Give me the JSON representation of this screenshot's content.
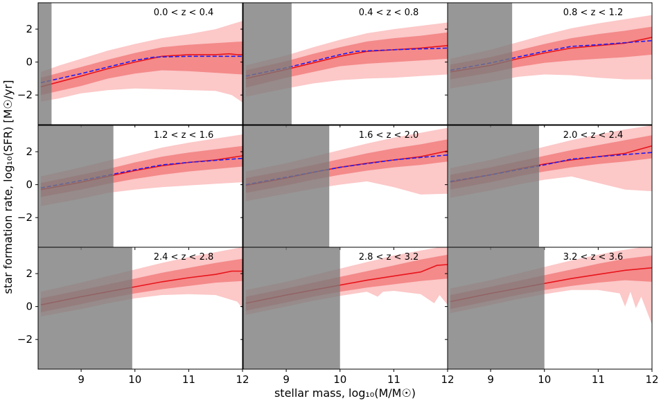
{
  "chart_data": {
    "type": "line",
    "layout": "3x3 grid of panels sharing axes",
    "xlabel": "stellar mass, log₁₀(M/M☉)",
    "ylabel": "star formation rate, log₁₀(SFR) [M☉/yr]",
    "xlim": [
      8.2,
      12.0
    ],
    "ylim": [
      -3.8,
      3.6
    ],
    "x_ticks": [
      "9",
      "10",
      "11",
      "12"
    ],
    "y_ticks": [
      "2",
      "0",
      "−2"
    ],
    "colors": {
      "median": "#e8141b",
      "inner_band": "#f48a8a",
      "outer_band": "#fcc8c8",
      "reference": "#1c1cf2",
      "mask": "#7a7a7a"
    },
    "panels": [
      {
        "label": "0.0 < z < 0.4",
        "mask_max": 8.45,
        "median": {
          "x": [
            8.25,
            9.0,
            9.5,
            10.0,
            10.5,
            11.0,
            11.5,
            11.75,
            11.9,
            12.0
          ],
          "y": [
            -1.5,
            -0.85,
            -0.4,
            0.0,
            0.35,
            0.45,
            0.45,
            0.5,
            0.45,
            0.45
          ]
        },
        "inner_band": {
          "x": [
            8.25,
            9.0,
            9.5,
            10.0,
            10.5,
            11.0,
            11.5,
            12.0
          ],
          "upper": [
            -0.95,
            -0.3,
            0.15,
            0.55,
            0.9,
            1.05,
            1.15,
            1.25
          ],
          "lower": [
            -2.0,
            -1.45,
            -1.0,
            -0.7,
            -0.5,
            -0.55,
            -0.65,
            -0.75
          ]
        },
        "outer_band": {
          "x": [
            8.25,
            8.6,
            9.0,
            9.5,
            10.0,
            10.5,
            11.0,
            11.5,
            11.8,
            12.0
          ],
          "upper": [
            -0.6,
            -0.2,
            0.2,
            0.7,
            1.1,
            1.45,
            1.7,
            2.0,
            2.3,
            2.5
          ],
          "lower": [
            -2.4,
            -2.2,
            -1.9,
            -1.7,
            -1.6,
            -1.65,
            -1.7,
            -1.75,
            -2.0,
            -2.45
          ]
        },
        "reference": {
          "x": [
            8.25,
            9.0,
            10.0,
            10.35,
            11.0,
            12.0
          ],
          "y": [
            -1.25,
            -0.7,
            0.1,
            0.3,
            0.35,
            0.35
          ]
        }
      },
      {
        "label": "0.4 < z < 0.8",
        "mask_max": 9.1,
        "median": {
          "x": [
            8.25,
            9.0,
            9.5,
            10.0,
            10.5,
            11.0,
            11.5,
            12.0
          ],
          "y": [
            -1.0,
            -0.45,
            -0.05,
            0.35,
            0.65,
            0.75,
            0.85,
            1.0
          ]
        },
        "inner_band": {
          "x": [
            8.25,
            9.0,
            9.5,
            10.0,
            10.5,
            11.0,
            11.5,
            12.0
          ],
          "upper": [
            -0.5,
            0.05,
            0.5,
            0.9,
            1.25,
            1.45,
            1.6,
            1.8
          ]
        },
        "inner_band_lower": [
          -1.55,
          -0.95,
          -0.6,
          -0.25,
          -0.1,
          0.0,
          0.1,
          0.2
        ],
        "outer_band": {
          "x": [
            8.25,
            9.0,
            9.5,
            10.0,
            10.5,
            11.0,
            11.5,
            12.0
          ],
          "upper": [
            -0.2,
            0.4,
            0.9,
            1.35,
            1.75,
            2.0,
            2.2,
            2.4
          ],
          "lower": [
            -2.1,
            -1.6,
            -1.3,
            -1.1,
            -1.0,
            -0.95,
            -0.85,
            -0.75
          ]
        },
        "reference": {
          "x": [
            8.25,
            9.0,
            10.0,
            10.3,
            11.0,
            12.0
          ],
          "y": [
            -0.85,
            -0.35,
            0.45,
            0.65,
            0.75,
            0.85
          ]
        }
      },
      {
        "label": "0.8 < z < 1.2",
        "mask_max": 9.4,
        "median": {
          "x": [
            8.25,
            9.0,
            9.5,
            10.0,
            10.5,
            11.0,
            11.5,
            12.0
          ],
          "y": [
            -0.6,
            -0.2,
            0.2,
            0.55,
            0.85,
            1.0,
            1.15,
            1.5
          ]
        },
        "inner_band": {
          "x": [
            8.25,
            9.0,
            9.5,
            10.0,
            10.5,
            11.0,
            11.5,
            12.0
          ],
          "upper": [
            -0.15,
            0.3,
            0.7,
            1.1,
            1.45,
            1.7,
            1.9,
            2.15
          ],
          "lower": [
            -1.05,
            -0.65,
            -0.3,
            -0.05,
            0.1,
            0.2,
            0.3,
            0.45
          ]
        },
        "outer_band": {
          "x": [
            8.25,
            9.0,
            9.5,
            10.0,
            10.5,
            11.0,
            11.5,
            12.0
          ],
          "upper": [
            0.2,
            0.75,
            1.2,
            1.65,
            2.05,
            2.35,
            2.6,
            2.85
          ],
          "lower": [
            -1.6,
            -1.2,
            -0.9,
            -0.75,
            -0.8,
            -0.95,
            -1.05,
            -1.05
          ]
        },
        "reference": {
          "x": [
            8.25,
            9.0,
            10.0,
            10.5,
            11.0,
            12.0
          ],
          "y": [
            -0.5,
            -0.05,
            0.65,
            0.95,
            1.05,
            1.3
          ]
        }
      },
      {
        "label": "1.2 < z < 1.6",
        "mask_max": 9.6,
        "median": {
          "x": [
            8.25,
            9.0,
            9.5,
            10.0,
            10.5,
            11.0,
            11.5,
            12.0
          ],
          "y": [
            -0.3,
            0.15,
            0.5,
            0.85,
            1.15,
            1.35,
            1.5,
            1.75
          ]
        },
        "inner_band": {
          "x": [
            8.25,
            9.0,
            9.5,
            10.0,
            10.5,
            11.0,
            11.5,
            12.0
          ],
          "upper": [
            0.1,
            0.6,
            0.95,
            1.35,
            1.7,
            1.95,
            2.15,
            2.35
          ],
          "lower": [
            -0.75,
            -0.3,
            0.05,
            0.35,
            0.6,
            0.8,
            0.95,
            1.1
          ]
        },
        "outer_band": {
          "x": [
            8.25,
            9.0,
            9.5,
            10.0,
            10.5,
            11.0,
            11.5,
            12.0
          ],
          "upper": [
            0.5,
            1.05,
            1.45,
            1.85,
            2.25,
            2.55,
            2.8,
            3.05
          ],
          "lower": [
            -1.3,
            -0.85,
            -0.5,
            -0.3,
            -0.15,
            -0.05,
            0.05,
            0.15
          ]
        },
        "reference": {
          "x": [
            8.25,
            9.0,
            10.0,
            10.5,
            11.0,
            12.0
          ],
          "y": [
            -0.2,
            0.25,
            0.9,
            1.2,
            1.35,
            1.6
          ]
        }
      },
      {
        "label": "1.6 < z < 2.0",
        "mask_max": 9.8,
        "median": {
          "x": [
            8.25,
            9.0,
            9.5,
            10.0,
            10.5,
            11.0,
            11.5,
            12.0
          ],
          "y": [
            -0.05,
            0.4,
            0.75,
            1.05,
            1.3,
            1.5,
            1.7,
            2.05
          ]
        },
        "inner_band": {
          "x": [
            8.25,
            9.0,
            9.5,
            10.0,
            10.5,
            11.0,
            11.5,
            12.0
          ],
          "upper": [
            0.4,
            0.85,
            1.2,
            1.55,
            1.9,
            2.2,
            2.45,
            2.75
          ],
          "lower": [
            -0.5,
            -0.05,
            0.3,
            0.6,
            0.85,
            1.05,
            1.2,
            1.4
          ]
        },
        "outer_band": {
          "x": [
            8.25,
            9.0,
            9.5,
            10.0,
            10.5,
            11.0,
            11.5,
            12.0
          ],
          "upper": [
            0.8,
            1.3,
            1.7,
            2.1,
            2.5,
            2.85,
            3.15,
            3.45
          ],
          "lower": [
            -1.0,
            -0.55,
            -0.25,
            0.0,
            0.2,
            -0.15,
            -0.6,
            -0.55
          ]
        },
        "reference": {
          "x": [
            8.25,
            9.0,
            10.0,
            11.0,
            12.0
          ],
          "y": [
            0.0,
            0.45,
            1.05,
            1.5,
            1.8
          ]
        }
      },
      {
        "label": "2.0 < z < 2.4",
        "mask_max": 9.9,
        "median": {
          "x": [
            8.25,
            9.0,
            9.5,
            10.0,
            10.5,
            11.0,
            11.5,
            12.0
          ],
          "y": [
            0.15,
            0.6,
            0.95,
            1.25,
            1.5,
            1.7,
            1.9,
            2.35
          ]
        },
        "inner_band": {
          "x": [
            8.25,
            9.0,
            9.5,
            10.0,
            10.5,
            11.0,
            11.5,
            12.0
          ],
          "upper": [
            0.6,
            1.05,
            1.4,
            1.75,
            2.1,
            2.4,
            2.7,
            3.0
          ],
          "lower": [
            -0.3,
            0.15,
            0.5,
            0.8,
            1.05,
            1.25,
            1.4,
            1.6
          ]
        },
        "outer_band": {
          "x": [
            8.25,
            9.0,
            9.5,
            10.0,
            10.5,
            11.0,
            11.5,
            12.0
          ],
          "upper": [
            1.0,
            1.5,
            1.9,
            2.3,
            2.7,
            3.05,
            3.35,
            3.6
          ],
          "lower": [
            -0.8,
            -0.35,
            0.0,
            0.3,
            0.5,
            0.1,
            -0.3,
            -0.4
          ]
        },
        "reference": {
          "x": [
            8.25,
            9.0,
            10.0,
            10.5,
            11.0,
            12.0
          ],
          "y": [
            0.2,
            0.6,
            1.2,
            1.55,
            1.7,
            1.95
          ]
        }
      },
      {
        "label": "2.4 < z < 2.8",
        "mask_max": 9.95,
        "median": {
          "x": [
            8.25,
            9.0,
            9.5,
            10.0,
            10.5,
            11.0,
            11.5,
            11.8,
            12.0
          ],
          "y": [
            0.1,
            0.6,
            0.9,
            1.2,
            1.5,
            1.75,
            1.95,
            2.15,
            2.15
          ]
        },
        "inner_band": {
          "x": [
            8.25,
            9.0,
            9.5,
            10.0,
            10.5,
            11.0,
            11.5,
            12.0
          ],
          "upper": [
            0.5,
            1.0,
            1.35,
            1.7,
            2.05,
            2.35,
            2.65,
            2.9
          ],
          "lower": [
            -0.35,
            0.15,
            0.5,
            0.8,
            1.05,
            1.25,
            1.45,
            1.55
          ]
        },
        "outer_band": {
          "x": [
            8.25,
            9.0,
            9.5,
            10.0,
            10.5,
            11.0,
            11.5,
            11.9,
            12.0
          ],
          "upper": [
            0.9,
            1.45,
            1.85,
            2.25,
            2.65,
            3.0,
            3.3,
            3.55,
            3.6
          ],
          "lower": [
            -0.6,
            -0.15,
            0.2,
            0.5,
            0.7,
            0.75,
            0.7,
            0.3,
            -0.1
          ]
        }
      },
      {
        "label": "2.8 < z < 3.2",
        "mask_max": 10.0,
        "median": {
          "x": [
            8.25,
            9.0,
            9.5,
            10.0,
            10.5,
            11.0,
            11.5,
            11.8,
            12.0
          ],
          "y": [
            0.2,
            0.7,
            1.0,
            1.3,
            1.6,
            1.85,
            2.1,
            2.5,
            2.55
          ]
        },
        "inner_band": {
          "x": [
            8.25,
            9.0,
            9.5,
            10.0,
            10.5,
            11.0,
            11.5,
            12.0
          ],
          "upper": [
            0.6,
            1.1,
            1.45,
            1.8,
            2.15,
            2.5,
            2.85,
            3.15
          ],
          "lower": [
            -0.25,
            0.25,
            0.6,
            0.9,
            1.15,
            1.35,
            1.55,
            1.7
          ]
        },
        "outer_band": {
          "x": [
            8.25,
            9.0,
            9.5,
            10.0,
            10.5,
            10.7,
            10.8,
            11.0,
            11.5,
            11.75,
            11.85,
            12.0
          ],
          "upper": [
            1.0,
            1.5,
            1.9,
            2.3,
            2.7,
            2.85,
            2.95,
            3.1,
            3.4,
            3.55,
            3.6,
            3.6
          ],
          "lower": [
            -0.5,
            0.0,
            0.35,
            0.65,
            0.9,
            0.6,
            0.9,
            0.95,
            0.75,
            0.2,
            0.7,
            0.1
          ]
        }
      },
      {
        "label": "3.2 < z < 3.6",
        "mask_max": 10.0,
        "median": {
          "x": [
            8.25,
            9.0,
            9.5,
            10.0,
            10.5,
            11.0,
            11.5,
            12.0
          ],
          "y": [
            0.3,
            0.8,
            1.1,
            1.4,
            1.7,
            1.95,
            2.2,
            2.35
          ]
        },
        "inner_band": {
          "x": [
            8.25,
            9.0,
            9.5,
            10.0,
            10.5,
            11.0,
            11.5,
            12.0
          ],
          "upper": [
            0.7,
            1.2,
            1.55,
            1.9,
            2.25,
            2.6,
            2.9,
            3.1
          ],
          "lower": [
            -0.15,
            0.35,
            0.7,
            1.0,
            1.25,
            1.45,
            1.6,
            1.5
          ]
        },
        "outer_band": {
          "x": [
            8.25,
            9.0,
            9.5,
            10.0,
            10.5,
            11.0,
            11.4,
            11.5,
            11.6,
            11.7,
            11.8,
            12.0
          ],
          "upper": [
            1.1,
            1.6,
            2.0,
            2.4,
            2.8,
            3.15,
            3.4,
            3.45,
            3.5,
            3.55,
            3.6,
            3.6
          ],
          "lower": [
            -0.4,
            0.1,
            0.45,
            0.75,
            1.0,
            1.0,
            0.8,
            0.0,
            0.9,
            -0.1,
            0.6,
            -1.1
          ]
        }
      }
    ]
  }
}
